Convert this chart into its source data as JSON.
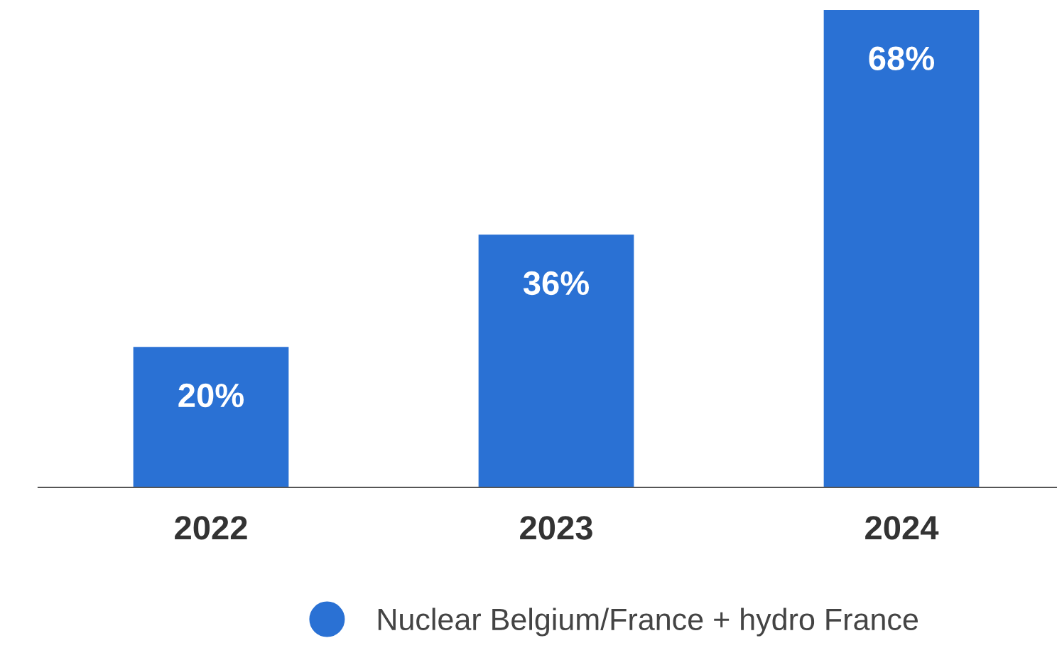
{
  "chart_data": {
    "type": "bar",
    "categories": [
      "2022",
      "2023",
      "2024"
    ],
    "series": [
      {
        "name": "Nuclear Belgium/France + hydro France",
        "color": "#2a71d4",
        "values": [
          20,
          36,
          68
        ],
        "value_labels": [
          "20%",
          "36%",
          "68%"
        ]
      }
    ],
    "legend": "bottom",
    "grid": false
  }
}
